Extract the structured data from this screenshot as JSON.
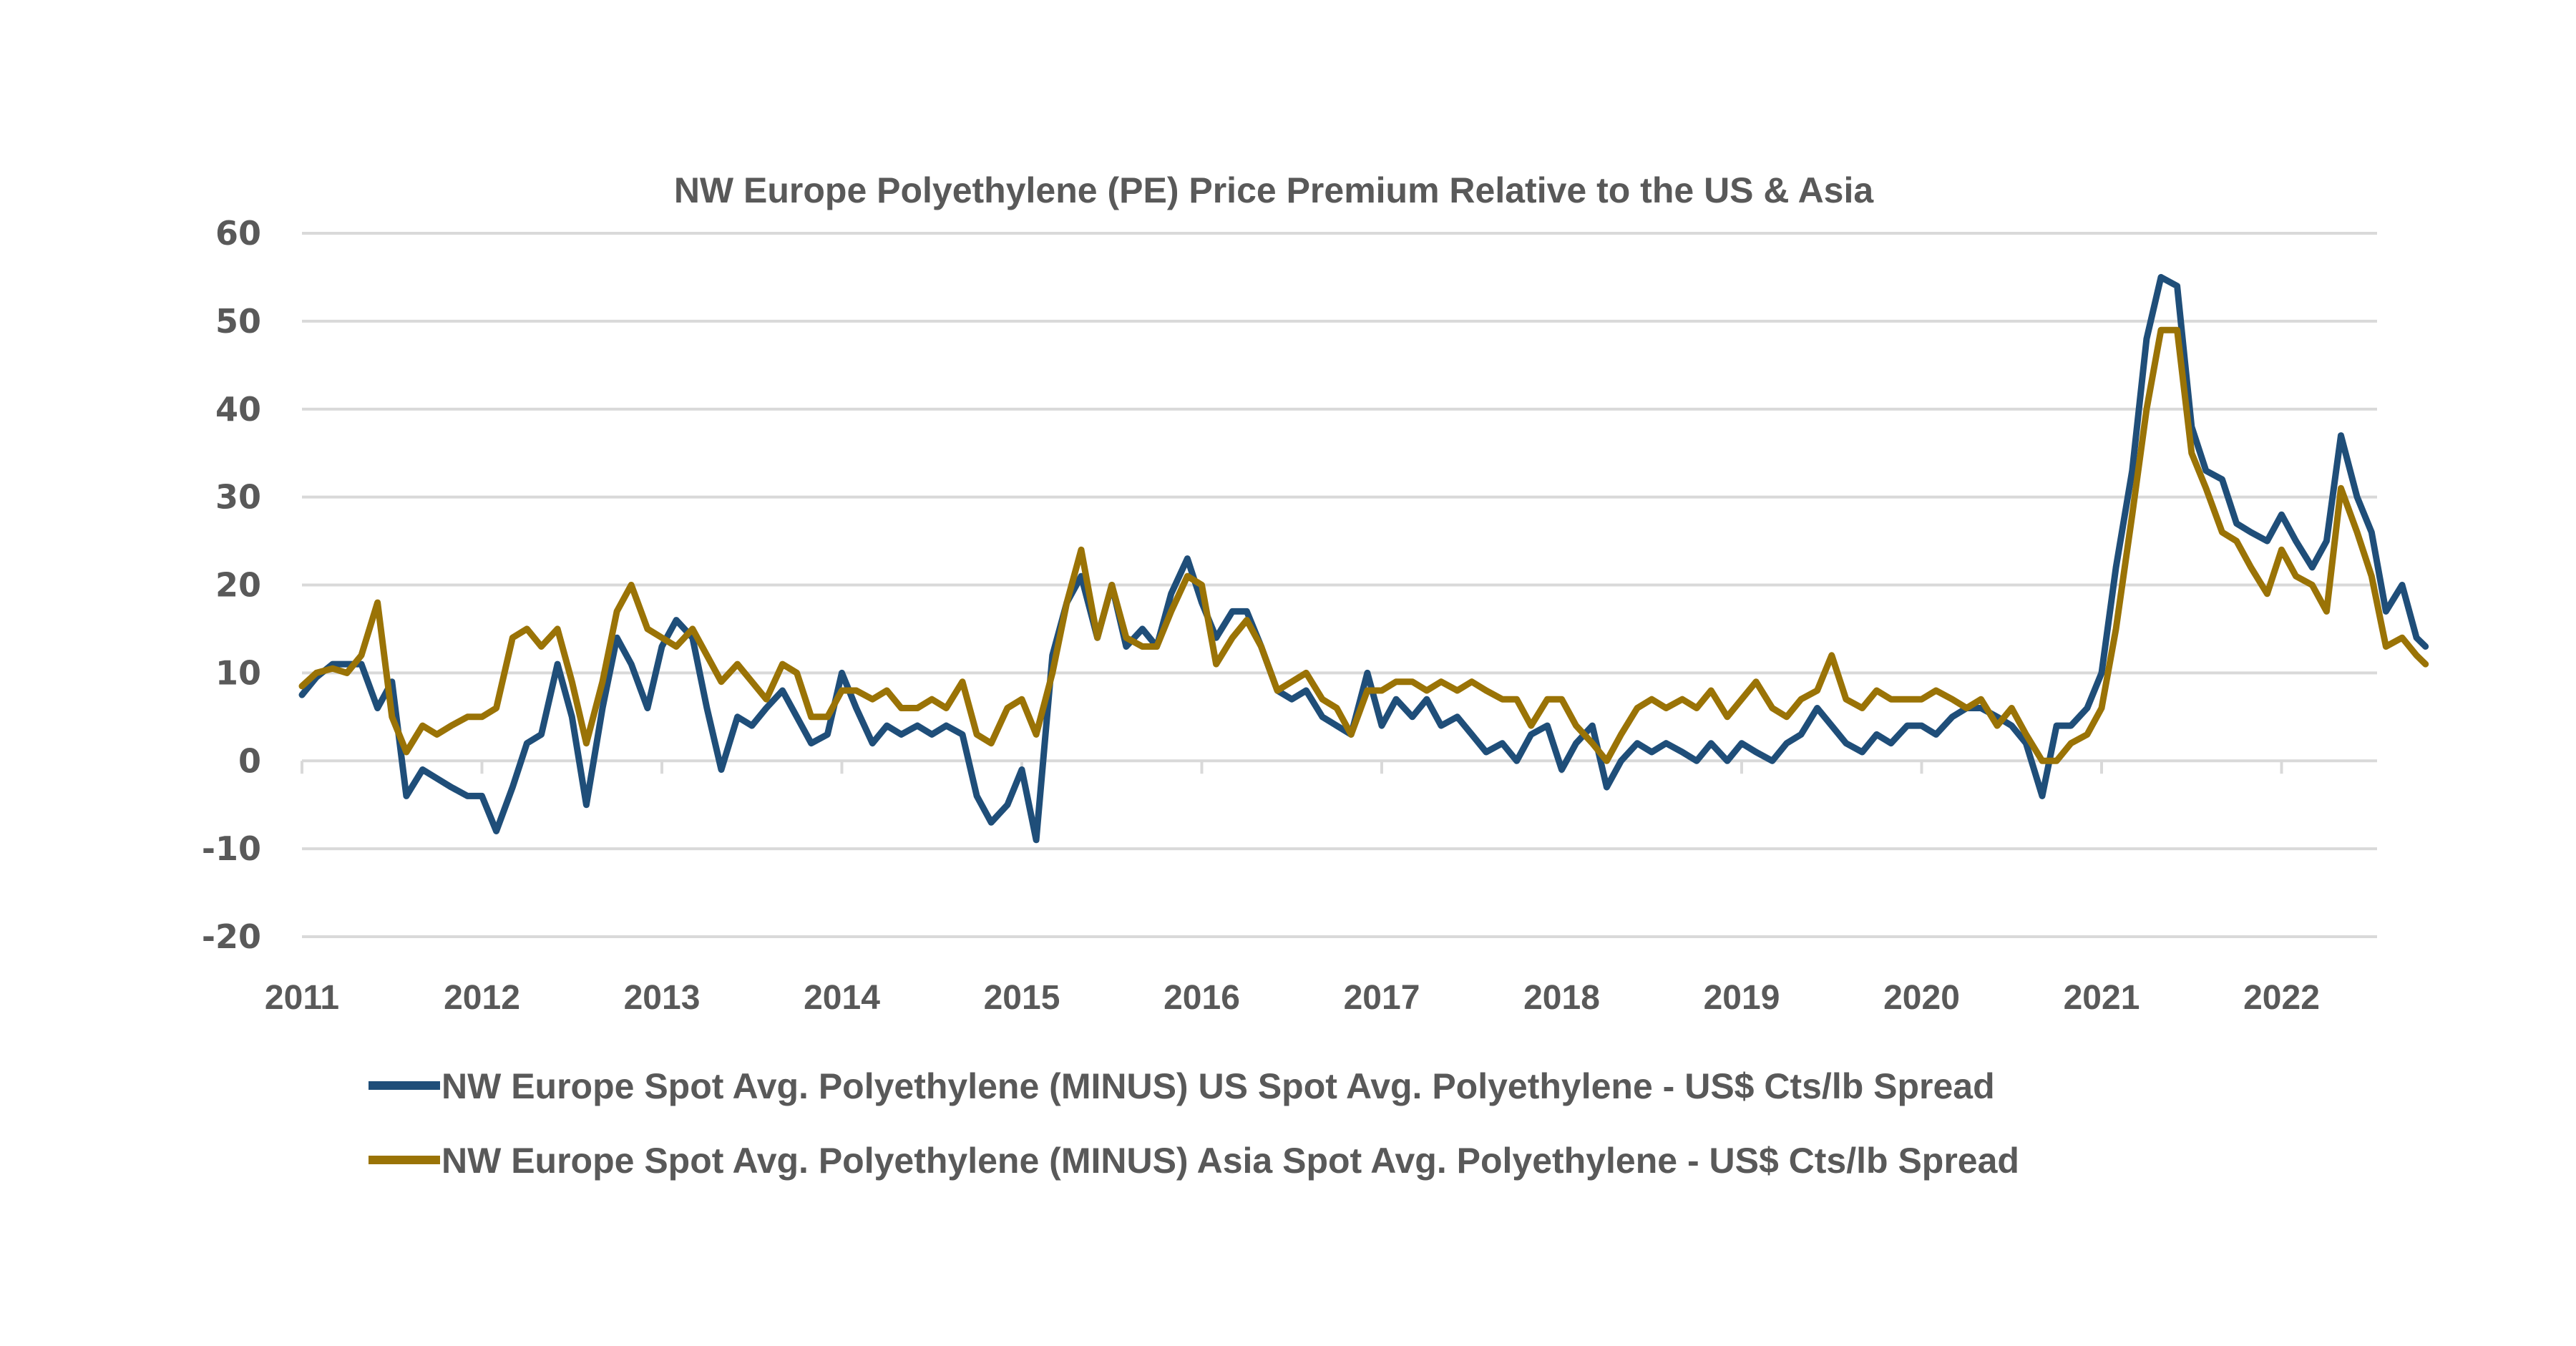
{
  "chart_data": {
    "type": "line",
    "title": "NW Europe Polyethylene (PE) Price Premium Relative to the US & Asia",
    "xlabel": "",
    "ylabel": "",
    "ylim": [
      -20,
      60
    ],
    "yticks": [
      60,
      50,
      40,
      30,
      20,
      10,
      0,
      -10,
      -20
    ],
    "xlim": [
      2011,
      2022.8
    ],
    "xticks": [
      "2011",
      "2012",
      "2013",
      "2014",
      "2015",
      "2016",
      "2017",
      "2018",
      "2019",
      "2020",
      "2021",
      "2022"
    ],
    "grid": true,
    "legend_position": "bottom",
    "x": [
      2011.0,
      2011.08,
      2011.17,
      2011.25,
      2011.33,
      2011.42,
      2011.5,
      2011.58,
      2011.67,
      2011.75,
      2011.83,
      2011.92,
      2012.0,
      2012.08,
      2012.17,
      2012.25,
      2012.33,
      2012.42,
      2012.5,
      2012.58,
      2012.67,
      2012.75,
      2012.83,
      2012.92,
      2013.0,
      2013.08,
      2013.17,
      2013.25,
      2013.33,
      2013.42,
      2013.5,
      2013.58,
      2013.67,
      2013.75,
      2013.83,
      2013.92,
      2014.0,
      2014.08,
      2014.17,
      2014.25,
      2014.33,
      2014.42,
      2014.5,
      2014.58,
      2014.67,
      2014.75,
      2014.83,
      2014.92,
      2015.0,
      2015.08,
      2015.17,
      2015.25,
      2015.33,
      2015.42,
      2015.5,
      2015.58,
      2015.67,
      2015.75,
      2015.83,
      2015.92,
      2016.0,
      2016.08,
      2016.17,
      2016.25,
      2016.33,
      2016.42,
      2016.5,
      2016.58,
      2016.67,
      2016.75,
      2016.83,
      2016.92,
      2017.0,
      2017.08,
      2017.17,
      2017.25,
      2017.33,
      2017.42,
      2017.5,
      2017.58,
      2017.67,
      2017.75,
      2017.83,
      2017.92,
      2018.0,
      2018.08,
      2018.17,
      2018.25,
      2018.33,
      2018.42,
      2018.5,
      2018.58,
      2018.67,
      2018.75,
      2018.83,
      2018.92,
      2019.0,
      2019.08,
      2019.17,
      2019.25,
      2019.33,
      2019.42,
      2019.5,
      2019.58,
      2019.67,
      2019.75,
      2019.83,
      2019.92,
      2020.0,
      2020.08,
      2020.17,
      2020.25,
      2020.33,
      2020.42,
      2020.5,
      2020.58,
      2020.67,
      2020.75,
      2020.83,
      2020.92,
      2021.0,
      2021.08,
      2021.17,
      2021.25,
      2021.33,
      2021.42,
      2021.5,
      2021.58,
      2021.67,
      2021.75,
      2021.83,
      2021.92,
      2022.0,
      2022.08,
      2022.17,
      2022.25,
      2022.33,
      2022.42,
      2022.5,
      2022.58,
      2022.67,
      2022.75,
      2022.8
    ],
    "series": [
      {
        "name": "NW Europe Spot Avg. Polyethylene (MINUS) US Spot Avg. Polyethylene - US$ Cts/lb Spread",
        "color": "#1f4e79",
        "values": [
          7.5,
          9.5,
          11,
          11,
          11,
          6,
          9,
          -4,
          -1,
          -2,
          -3,
          -4,
          -4,
          -8,
          -3,
          2,
          3,
          11,
          5,
          -5,
          6,
          14,
          11,
          6,
          13,
          16,
          14,
          6,
          -1,
          5,
          4,
          6,
          8,
          5,
          2,
          3,
          10,
          6,
          2,
          4,
          3,
          4,
          3,
          4,
          3,
          -4,
          -7,
          -5,
          -1,
          -9,
          12,
          18,
          21,
          14,
          20,
          13,
          15,
          13,
          19,
          23,
          18,
          14,
          17,
          17,
          13,
          8,
          7,
          8,
          5,
          4,
          3,
          10,
          4,
          7,
          5,
          7,
          4,
          5,
          3,
          1,
          2,
          0,
          3,
          4,
          -1,
          2,
          4,
          -3,
          0,
          2,
          1,
          2,
          1,
          0,
          2,
          0,
          2,
          1,
          0,
          2,
          3,
          6,
          4,
          2,
          1,
          3,
          2,
          4,
          4,
          3,
          5,
          6,
          6,
          5,
          4,
          2,
          -4,
          4,
          4,
          6,
          10,
          22,
          33,
          48,
          55,
          54,
          38,
          33,
          32,
          27,
          26,
          25,
          28,
          25,
          22,
          25,
          37,
          30,
          26,
          17,
          20,
          14,
          13
        ]
      },
      {
        "name": "NW Europe Spot Avg. Polyethylene (MINUS) Asia Spot Avg. Polyethylene - US$ Cts/lb Spread",
        "color": "#9a7306",
        "values": [
          8.5,
          10,
          10.5,
          10,
          12,
          18,
          5,
          1,
          4,
          3,
          4,
          5,
          5,
          6,
          14,
          15,
          13,
          15,
          9,
          2,
          9,
          17,
          20,
          15,
          14,
          13,
          15,
          12,
          9,
          11,
          9,
          7,
          11,
          10,
          5,
          5,
          8,
          8,
          7,
          8,
          6,
          6,
          7,
          6,
          9,
          3,
          2,
          6,
          7,
          3,
          10,
          18,
          24,
          14,
          20,
          14,
          13,
          13,
          17,
          21,
          20,
          11,
          14,
          16,
          13,
          8,
          9,
          10,
          7,
          6,
          3,
          8,
          8,
          9,
          9,
          8,
          9,
          8,
          9,
          8,
          7,
          7,
          4,
          7,
          7,
          4,
          2,
          0,
          3,
          6,
          7,
          6,
          7,
          6,
          8,
          5,
          7,
          9,
          6,
          5,
          7,
          8,
          12,
          7,
          6,
          8,
          7,
          7,
          7,
          8,
          7,
          6,
          7,
          4,
          6,
          3,
          0,
          0,
          2,
          3,
          6,
          15,
          28,
          40,
          49,
          49,
          35,
          31,
          26,
          25,
          22,
          19,
          24,
          21,
          20,
          17,
          31,
          26,
          21,
          13,
          14,
          12,
          11
        ]
      }
    ]
  },
  "legend": {
    "items": [
      {
        "label": "NW Europe Spot Avg. Polyethylene (MINUS) US Spot Avg. Polyethylene - US$ Cts/lb Spread",
        "color": "#1f4e79"
      },
      {
        "label": "NW Europe Spot Avg. Polyethylene (MINUS) Asia Spot Avg. Polyethylene - US$ Cts/lb Spread",
        "color": "#9a7306"
      }
    ]
  }
}
